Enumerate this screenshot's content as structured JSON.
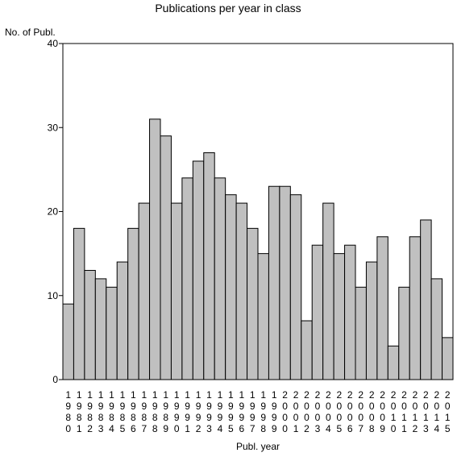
{
  "chart_data": {
    "type": "bar",
    "title": "Publications per year in class",
    "ylabel": "No. of Publ.",
    "xlabel": "Publ. year",
    "ylim": [
      0,
      40
    ],
    "yticks": [
      0,
      10,
      20,
      30,
      40
    ],
    "grid": false,
    "bar_color": "#c0c0c0",
    "categories": [
      "1980",
      "1981",
      "1982",
      "1983",
      "1984",
      "1985",
      "1986",
      "1987",
      "1988",
      "1989",
      "1990",
      "1991",
      "1992",
      "1993",
      "1994",
      "1995",
      "1996",
      "1997",
      "1998",
      "1999",
      "2000",
      "2001",
      "2002",
      "2003",
      "2004",
      "2005",
      "2006",
      "2007",
      "2008",
      "2009",
      "2010",
      "2011",
      "2012",
      "2013",
      "2014",
      "2015"
    ],
    "values": [
      9,
      18,
      13,
      12,
      11,
      14,
      18,
      21,
      31,
      29,
      21,
      24,
      26,
      27,
      24,
      22,
      21,
      18,
      15,
      23,
      23,
      22,
      7,
      16,
      21,
      15,
      16,
      11,
      14,
      17,
      4,
      11,
      17,
      19,
      12,
      5
    ]
  }
}
